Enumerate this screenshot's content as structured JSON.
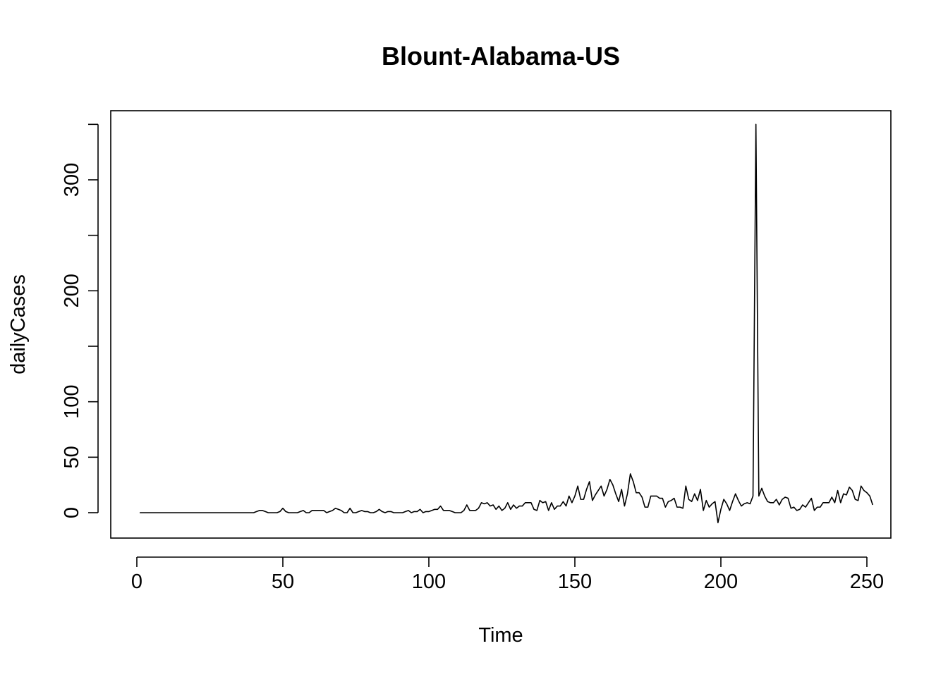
{
  "chart_data": {
    "type": "line",
    "title": "Blount-Alabama-US",
    "xlabel": "Time",
    "ylabel": "dailyCases",
    "xlim": [
      1,
      248
    ],
    "ylim": [
      -9,
      350
    ],
    "x_ticks": [
      0,
      50,
      100,
      150,
      200,
      250
    ],
    "y_ticks": [
      0,
      50,
      100,
      150,
      200,
      250,
      300,
      350
    ],
    "y_tick_labels": [
      "0",
      "50",
      "100",
      "",
      "200",
      "",
      "300",
      ""
    ],
    "grid": false,
    "legend": "none",
    "line_color": "#000000",
    "x_start": 1,
    "values": [
      0,
      0,
      0,
      0,
      0,
      0,
      0,
      0,
      0,
      0,
      0,
      0,
      0,
      0,
      0,
      0,
      0,
      0,
      0,
      0,
      0,
      0,
      0,
      0,
      0,
      0,
      0,
      0,
      0,
      0,
      0,
      0,
      0,
      0,
      0,
      0,
      0,
      0,
      0,
      0,
      1,
      2,
      2,
      1,
      0,
      0,
      0,
      0,
      1,
      4,
      1,
      0,
      0,
      0,
      0,
      1,
      2,
      0,
      0,
      2,
      2,
      2,
      2,
      2,
      0,
      1,
      2,
      4,
      3,
      2,
      0,
      0,
      4,
      0,
      0,
      1,
      2,
      1,
      1,
      0,
      0,
      1,
      3,
      1,
      0,
      1,
      1,
      0,
      0,
      0,
      0,
      1,
      2,
      0,
      1,
      1,
      3,
      0,
      1,
      1,
      2,
      3,
      3,
      6,
      2,
      2,
      2,
      1,
      0,
      0,
      0,
      2,
      7,
      2,
      2,
      2,
      4,
      9,
      8,
      9,
      6,
      7,
      3,
      6,
      2,
      4,
      9,
      3,
      7,
      4,
      6,
      6,
      9,
      9,
      9,
      3,
      2,
      11,
      9,
      10,
      2,
      9,
      3,
      6,
      6,
      10,
      6,
      15,
      9,
      15,
      24,
      12,
      12,
      21,
      28,
      11,
      16,
      20,
      24,
      15,
      21,
      30,
      25,
      17,
      10,
      21,
      6,
      17,
      35,
      28,
      18,
      18,
      14,
      5,
      5,
      15,
      15,
      15,
      13,
      13,
      5,
      10,
      11,
      13,
      5,
      5,
      4,
      24,
      12,
      10,
      17,
      11,
      21,
      2,
      11,
      5,
      8,
      10,
      -9,
      3,
      12,
      8,
      2,
      10,
      17,
      11,
      6,
      8,
      9,
      8,
      15,
      350,
      15,
      22,
      15,
      10,
      9,
      9,
      12,
      7,
      12,
      14,
      13,
      4,
      5,
      2,
      3,
      7,
      5,
      9,
      13,
      2,
      5,
      5,
      9,
      9,
      9,
      14,
      9,
      20,
      9,
      17,
      16,
      23,
      20,
      12,
      11,
      24,
      20,
      18,
      15,
      7
    ]
  }
}
